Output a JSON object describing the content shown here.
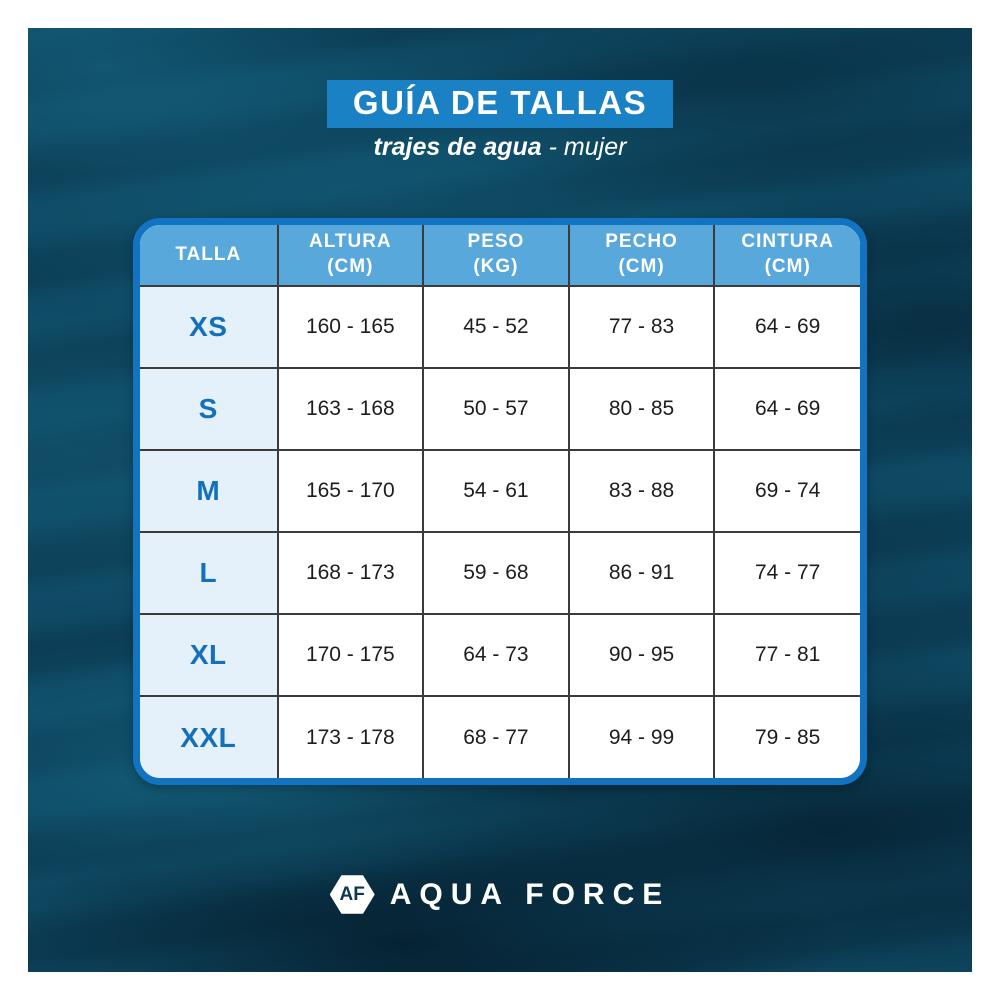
{
  "header": {
    "title": "GUÍA DE TALLAS",
    "subtitle_bold": "trajes de agua",
    "subtitle_light": "- mujer"
  },
  "table": {
    "columns": [
      {
        "label": "TALLA",
        "unit": ""
      },
      {
        "label": "ALTURA",
        "unit": "(CM)"
      },
      {
        "label": "PESO",
        "unit": "(KG)"
      },
      {
        "label": "PECHO",
        "unit": "(CM)"
      },
      {
        "label": "CINTURA",
        "unit": "(CM)"
      }
    ],
    "rows": [
      {
        "size": "XS",
        "altura": "160 - 165",
        "peso": "45 - 52",
        "pecho": "77 - 83",
        "cintura": "64 - 69"
      },
      {
        "size": "S",
        "altura": "163 - 168",
        "peso": "50 - 57",
        "pecho": "80 - 85",
        "cintura": "64 - 69"
      },
      {
        "size": "M",
        "altura": "165 - 170",
        "peso": "54 - 61",
        "pecho": "83 - 88",
        "cintura": "69 - 74"
      },
      {
        "size": "L",
        "altura": "168 - 173",
        "peso": "59 - 68",
        "pecho": "86 - 91",
        "cintura": "74 - 77"
      },
      {
        "size": "XL",
        "altura": "170 - 175",
        "peso": "64 - 73",
        "pecho": "90 - 95",
        "cintura": "77 - 81"
      },
      {
        "size": "XXL",
        "altura": "173 - 178",
        "peso": "68 - 77",
        "pecho": "94 - 99",
        "cintura": "79 - 85"
      }
    ]
  },
  "footer": {
    "logo_monogram": "AF",
    "brand_name": "AQUA FORCE"
  },
  "colors": {
    "banner_blue": "#1b81c5",
    "table_border_blue": "#1273c0",
    "header_cell_blue": "#58a8dc",
    "size_column_blue": "#e4f1fa",
    "size_text_blue": "#1470ba",
    "grid_line": "#3b3b3b",
    "ocean_base": "#0d455f"
  }
}
